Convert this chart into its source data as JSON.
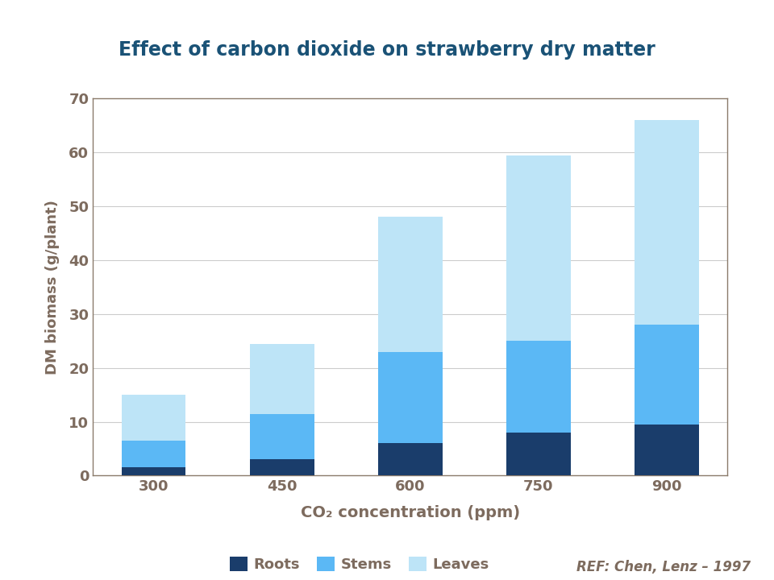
{
  "title": "Effect of carbon dioxide on strawberry dry matter",
  "xlabel": "CO₂ concentration (ppm)",
  "ylabel": "DM biomass (g/plant)",
  "categories": [
    "300",
    "450",
    "600",
    "750",
    "900"
  ],
  "roots": [
    1.5,
    3.0,
    6.0,
    8.0,
    9.5
  ],
  "stems": [
    5.0,
    8.5,
    17.0,
    17.0,
    18.5
  ],
  "leaves": [
    8.5,
    13.0,
    25.0,
    34.5,
    38.0
  ],
  "color_roots": "#1A3D6B",
  "color_stems": "#5BB8F5",
  "color_leaves": "#BDE4F7",
  "title_color": "#1A5276",
  "text_color": "#7D6B5E",
  "legend_labels": [
    "Roots",
    "Stems",
    "Leaves"
  ],
  "ref_text": "REF: Chen, Lenz – 1997",
  "ylim": [
    0,
    70
  ],
  "yticks": [
    0,
    10,
    20,
    30,
    40,
    50,
    60,
    70
  ],
  "bar_width": 0.5,
  "spine_color": "#8B7B6B",
  "grid_color": "#CCCCCC"
}
